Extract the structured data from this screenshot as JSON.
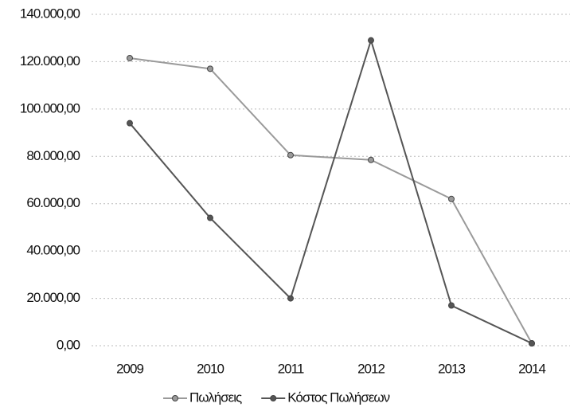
{
  "chart_data": {
    "type": "line",
    "categories": [
      "2009",
      "2010",
      "2011",
      "2012",
      "2013",
      "2014"
    ],
    "series": [
      {
        "name": "Πωλήσεις",
        "color": "#9a9a9a",
        "values": [
          121500,
          117000,
          80500,
          78500,
          62000,
          1000
        ]
      },
      {
        "name": "Κόστος Πωλήσεων",
        "color": "#555555",
        "values": [
          94000,
          54000,
          20000,
          129000,
          17000,
          1000
        ]
      }
    ],
    "ylim": [
      0,
      140000
    ],
    "yticks": [
      {
        "value": 0,
        "label": "0,00"
      },
      {
        "value": 20000,
        "label": "20.000,00"
      },
      {
        "value": 40000,
        "label": "40.000,00"
      },
      {
        "value": 60000,
        "label": "60.000,00"
      },
      {
        "value": 80000,
        "label": "80.000,00"
      },
      {
        "value": 100000,
        "label": "100.000,00"
      },
      {
        "value": 120000,
        "label": "120.000,00"
      },
      {
        "value": 140000,
        "label": "140.000,00"
      }
    ],
    "grid": true,
    "legend": "bottom"
  }
}
